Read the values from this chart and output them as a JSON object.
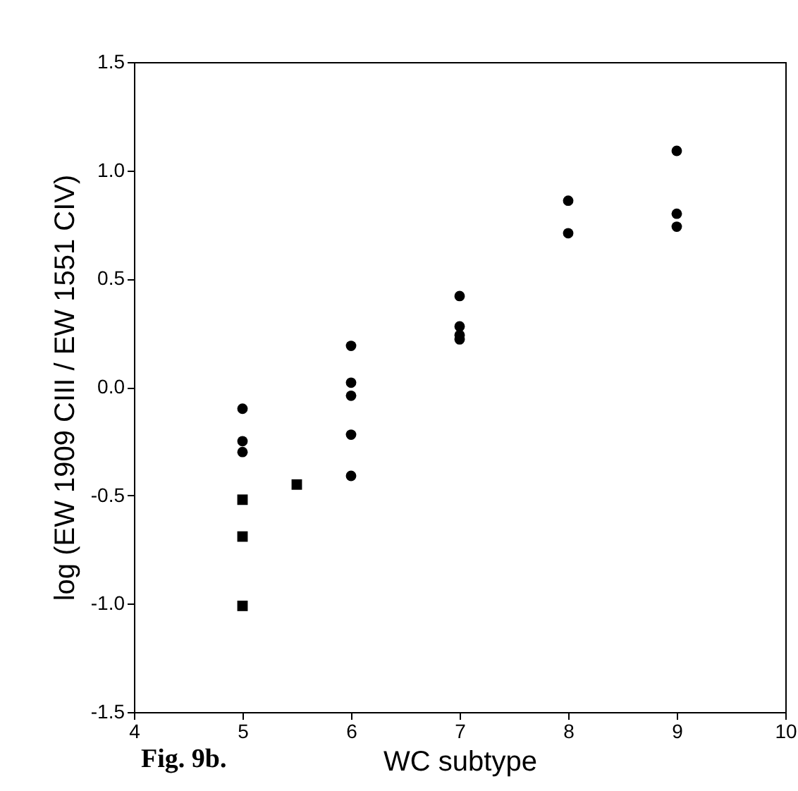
{
  "chart_data": {
    "type": "scatter",
    "xlabel": "WC subtype",
    "ylabel": "log (EW 1909 CIII / EW 1551 CIV)",
    "annotations": [
      "Fig. 9b."
    ],
    "series": [
      {
        "color": "#000000",
        "marker": "circle",
        "x": [
          5,
          5,
          5,
          6,
          6,
          6,
          6,
          6,
          7,
          7
        ],
        "values": [
          -0.1,
          -0.25,
          -0.3,
          0.19,
          0.02,
          -0.04,
          -0.22,
          -0.41,
          0.28,
          0.24
        ]
      },
      {
        "color": "#000000",
        "marker": "square",
        "x": [
          5,
          5,
          5,
          5.5
        ],
        "values": [
          -0.52,
          -0.69,
          -1.01,
          -0.45
        ]
      },
      {
        "color": "#000000",
        "marker": "circle",
        "x": [
          7,
          7,
          8,
          8,
          9,
          9,
          9
        ],
        "values": [
          0.42,
          0.22,
          0.86,
          0.71,
          1.09,
          0.8,
          0.74
        ]
      }
    ],
    "xlim": [
      4,
      10
    ],
    "xticks": [
      4,
      5,
      6,
      7,
      8,
      9,
      10
    ],
    "ylim": [
      -1.5,
      1.5
    ],
    "yticks": [
      {
        "value": -1.5,
        "label": "-1.5"
      },
      {
        "value": -1,
        "label": "-1.0"
      },
      {
        "value": -0.5,
        "label": "-0.5"
      },
      {
        "value": 0,
        "label": "0.0"
      },
      {
        "value": 0.5,
        "label": "0.5"
      },
      {
        "value": 1,
        "label": "1.0"
      },
      {
        "value": 1.5,
        "label": "1.5"
      }
    ],
    "grid": false
  }
}
